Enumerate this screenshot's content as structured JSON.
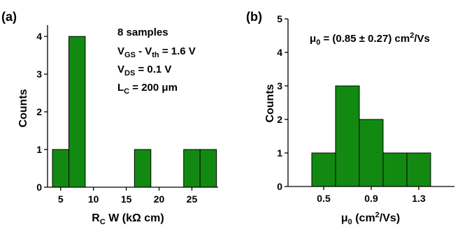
{
  "chart_data": [
    {
      "type": "bar",
      "panel_label": "(a)",
      "xlabel_main": "R",
      "xlabel_sub": "C",
      "xlabel_rest": " W (kΩ cm)",
      "ylabel": "Counts",
      "xlim": [
        3,
        29
      ],
      "ylim": [
        0,
        4.3
      ],
      "bin_width": 2.5,
      "bars": [
        {
          "x": 5,
          "count": 1
        },
        {
          "x": 7.5,
          "count": 4
        },
        {
          "x": 17.5,
          "count": 1
        },
        {
          "x": 25,
          "count": 1
        },
        {
          "x": 27.5,
          "count": 1
        }
      ],
      "xticks": [
        "5",
        "10",
        "15",
        "20",
        "25"
      ],
      "xtick_values": [
        5,
        10,
        15,
        20,
        25
      ],
      "yticks": [
        "0",
        "1",
        "2",
        "3",
        "4"
      ],
      "ytick_values": [
        0,
        1,
        2,
        3,
        4
      ],
      "annotations": {
        "line1": "8 samples",
        "line2_a": "V",
        "line2_a_sub": "GS",
        "line2_b": " - V",
        "line2_b_sub": "th",
        "line2_c": " = 1.6 V",
        "line3_a": "V",
        "line3_a_sub": "DS",
        "line3_b": " = 0.1 V",
        "line4_a": "L",
        "line4_a_sub": "C",
        "line4_b": " = 200 μm"
      },
      "bar_color": "#128a12"
    },
    {
      "type": "bar",
      "panel_label": "(b)",
      "xlabel_main": "μ",
      "xlabel_sub": "0",
      "xlabel_rest": " (cm",
      "xlabel_sup": "2",
      "xlabel_end": "/Vs)",
      "ylabel": "Counts",
      "xlim": [
        0.2,
        1.6
      ],
      "ylim": [
        0,
        5
      ],
      "bin_width": 0.2,
      "bars": [
        {
          "x": 0.5,
          "count": 1
        },
        {
          "x": 0.7,
          "count": 3
        },
        {
          "x": 0.9,
          "count": 2
        },
        {
          "x": 1.1,
          "count": 1
        },
        {
          "x": 1.3,
          "count": 1
        }
      ],
      "xticks": [
        "0.5",
        "0.9",
        "1.3"
      ],
      "xtick_values": [
        0.5,
        0.9,
        1.3
      ],
      "yticks": [
        "0",
        "1",
        "2",
        "3",
        "4",
        "5"
      ],
      "ytick_values": [
        0,
        1,
        2,
        3,
        4,
        5
      ],
      "annotations": {
        "mu_a": "μ",
        "mu_a_sub": "0",
        "mu_b": " = (0.85 ± 0.27) cm",
        "mu_b_sup": "2",
        "mu_c": "/Vs"
      },
      "bar_color": "#128a12"
    }
  ]
}
